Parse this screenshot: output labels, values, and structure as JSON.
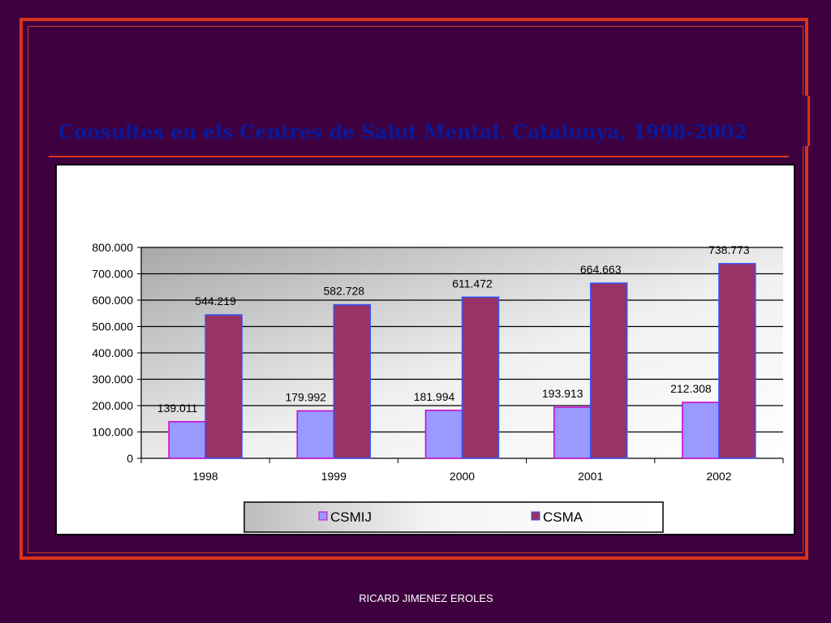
{
  "slide": {
    "title": "Consultes en els Centres de Salut Mental. Catalunya, 1998-2002",
    "footer": "RICARD JIMENEZ EROLES"
  },
  "colors": {
    "background": "#3f0040",
    "frame": "#d9331a",
    "title": "#0a1a9a",
    "csmij": "#9999ff",
    "csma": "#993366"
  },
  "chart_data": {
    "type": "bar",
    "title": "",
    "xlabel": "",
    "ylabel": "",
    "categories": [
      "1998",
      "1999",
      "2000",
      "2001",
      "2002"
    ],
    "series": [
      {
        "name": "CSMIJ",
        "values": [
          139011,
          179992,
          181994,
          193913,
          212308
        ],
        "labels": [
          "139.011",
          "179.992",
          "181.994",
          "193.913",
          "212.308"
        ],
        "color": "#9999ff"
      },
      {
        "name": "CSMA",
        "values": [
          544219,
          582728,
          611472,
          664663,
          738773
        ],
        "labels": [
          "544.219",
          "582.728",
          "611.472",
          "664.663",
          "738.773"
        ],
        "color": "#993366"
      }
    ],
    "ylim": [
      0,
      800000
    ],
    "yticks": [
      0,
      100000,
      200000,
      300000,
      400000,
      500000,
      600000,
      700000,
      800000
    ],
    "ytick_labels": [
      "0",
      "100.000",
      "200.000",
      "300.000",
      "400.000",
      "500.000",
      "600.000",
      "700.000",
      "800.000"
    ],
    "grid": true,
    "legend_position": "bottom"
  }
}
